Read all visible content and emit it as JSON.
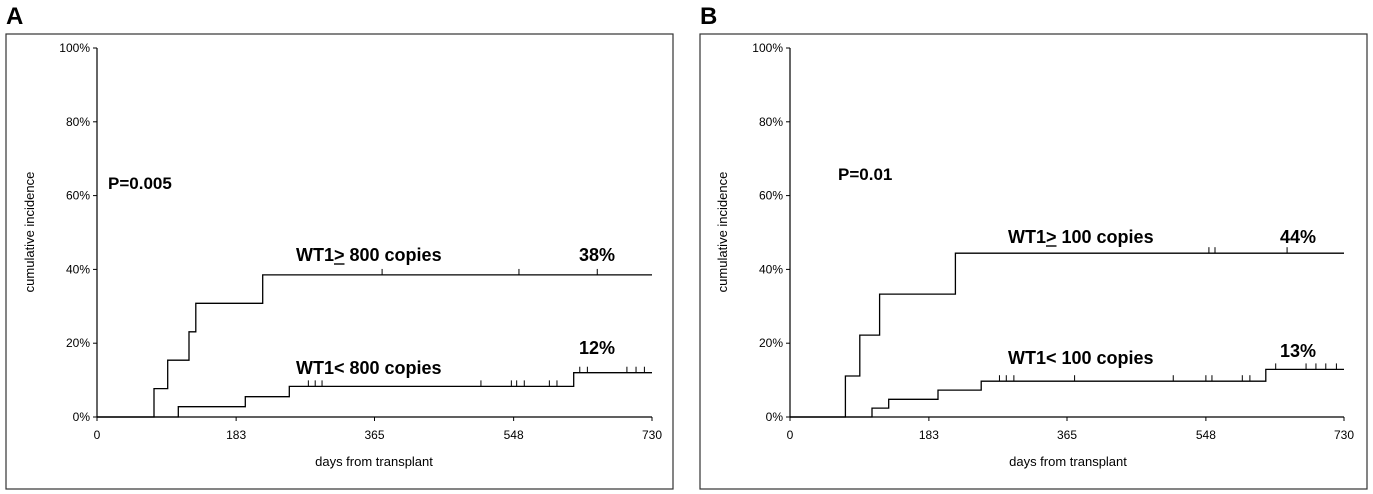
{
  "chart_data": [
    {
      "type": "line",
      "panel_label": "A",
      "xlabel": "days from transplant",
      "ylabel": "cumulative incidence",
      "xlim": [
        0,
        730
      ],
      "ylim": [
        0,
        100
      ],
      "x_ticks": [
        0,
        183,
        365,
        548,
        730
      ],
      "y_ticks": [
        "0%",
        "20%",
        "40%",
        "60%",
        "80%",
        "100%"
      ],
      "y_tick_values": [
        0,
        20,
        40,
        60,
        80,
        100
      ],
      "p_value": "P=0.005",
      "series": [
        {
          "name": "high",
          "label": "WT1",
          "label_ge": ">",
          "label_rest": " 800 copies",
          "final_label": "38%",
          "steps": [
            [
              0,
              0
            ],
            [
              75,
              0
            ],
            [
              75,
              7.7
            ],
            [
              93,
              7.7
            ],
            [
              93,
              15.4
            ],
            [
              121,
              15.4
            ],
            [
              121,
              23.1
            ],
            [
              130,
              23.1
            ],
            [
              130,
              30.8
            ],
            [
              218,
              30.8
            ],
            [
              218,
              38.5
            ],
            [
              730,
              38.5
            ]
          ],
          "censor_x": [
            375,
            555,
            658
          ]
        },
        {
          "name": "low",
          "label": "WT1",
          "label_ge": "",
          "label_rest": "< 800 copies",
          "final_label": "12%",
          "steps": [
            [
              0,
              0
            ],
            [
              107,
              0
            ],
            [
              107,
              2.8
            ],
            [
              195,
              2.8
            ],
            [
              195,
              5.5
            ],
            [
              253,
              5.5
            ],
            [
              253,
              8.3
            ],
            [
              627,
              8.3
            ],
            [
              627,
              12
            ],
            [
              730,
              12
            ]
          ],
          "censor_x": [
            278,
            287,
            296,
            505,
            545,
            552,
            562,
            595,
            605,
            635,
            645,
            697,
            709,
            720
          ]
        }
      ]
    },
    {
      "type": "line",
      "panel_label": "B",
      "xlabel": "days from transplant",
      "ylabel": "cumulative incidence",
      "xlim": [
        0,
        730
      ],
      "ylim": [
        0,
        100
      ],
      "x_ticks": [
        0,
        183,
        365,
        548,
        730
      ],
      "y_ticks": [
        "0%",
        "20%",
        "40%",
        "60%",
        "80%",
        "100%"
      ],
      "y_tick_values": [
        0,
        20,
        40,
        60,
        80,
        100
      ],
      "p_value": "P=0.01",
      "series": [
        {
          "name": "high",
          "label": "WT1",
          "label_ge": ">",
          "label_rest": " 100 copies",
          "final_label": "44%",
          "steps": [
            [
              0,
              0
            ],
            [
              73,
              0
            ],
            [
              73,
              11.1
            ],
            [
              92,
              11.1
            ],
            [
              92,
              22.2
            ],
            [
              118,
              22.2
            ],
            [
              118,
              33.3
            ],
            [
              218,
              33.3
            ],
            [
              218,
              44.4
            ],
            [
              730,
              44.4
            ]
          ],
          "censor_x": [
            552,
            560,
            655
          ]
        },
        {
          "name": "low",
          "label": "WT1",
          "label_ge": "",
          "label_rest": "< 100 copies",
          "final_label": "13%",
          "steps": [
            [
              0,
              0
            ],
            [
              108,
              0
            ],
            [
              108,
              2.4
            ],
            [
              130,
              2.4
            ],
            [
              130,
              4.8
            ],
            [
              195,
              4.8
            ],
            [
              195,
              7.3
            ],
            [
              252,
              7.3
            ],
            [
              252,
              9.7
            ],
            [
              627,
              9.7
            ],
            [
              627,
              12.9
            ],
            [
              730,
              12.9
            ]
          ],
          "censor_x": [
            276,
            285,
            295,
            375,
            505,
            548,
            556,
            596,
            606,
            640,
            680,
            693,
            706,
            720
          ]
        }
      ]
    }
  ]
}
